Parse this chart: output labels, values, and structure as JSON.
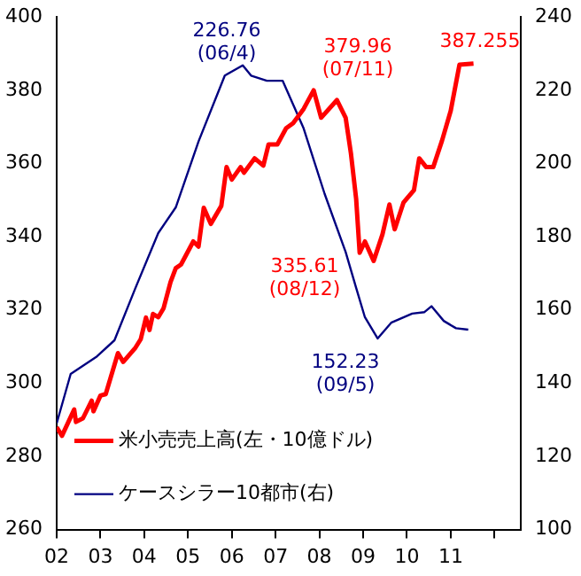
{
  "chart_data": {
    "type": "line",
    "x": [
      2002.0,
      2002.12,
      2002.4,
      2002.44,
      2002.6,
      2002.8,
      2002.84,
      2003.0,
      2003.12,
      2003.4,
      2003.52,
      2003.8,
      2003.92,
      2004.04,
      2004.12,
      2004.2,
      2004.32,
      2004.44,
      2004.6,
      2004.72,
      2004.84,
      2005.12,
      2005.24,
      2005.36,
      2005.52,
      2005.76,
      2005.88,
      2006.0,
      2006.2,
      2006.28,
      2006.52,
      2006.72,
      2006.84,
      2007.04,
      2007.24,
      2007.4,
      2007.64,
      2007.87,
      2008.04,
      2008.4,
      2008.6,
      2008.72,
      2008.84,
      2008.92,
      2009.04,
      2009.24,
      2009.44,
      2009.6,
      2009.72,
      2009.92,
      2010.16,
      2010.28,
      2010.44,
      2010.6,
      2010.8,
      2011.0,
      2011.2,
      2011.52
    ],
    "series": [
      {
        "name": "米小売売上高(左・10億ドル)",
        "color": "#ff0000",
        "values": [
          288,
          285.6,
          292.8,
          289.4,
          290.4,
          295.2,
          292.3,
          296.6,
          297,
          308.2,
          305.8,
          309.7,
          312,
          317.9,
          314.5,
          318.9,
          318,
          320.4,
          327.6,
          331.4,
          332.4,
          338.7,
          337.3,
          347.9,
          343.5,
          348.4,
          359,
          355.6,
          359,
          357.5,
          361.4,
          359.4,
          365.2,
          365.2,
          369.6,
          371,
          374.9,
          380,
          372.5,
          377.3,
          372.5,
          362.8,
          350.3,
          335.6,
          338.7,
          333.4,
          340.6,
          348.8,
          342,
          349.3,
          352.7,
          361.4,
          359,
          359,
          366.2,
          374.4,
          387,
          387.3
        ]
      },
      {
        "name": "ケースシラー10都市(右)",
        "color": "#000080",
        "axis": "y2",
        "x": [
          2002.0,
          2002.32,
          2002.92,
          2003.32,
          2003.8,
          2004.32,
          2004.72,
          2005.24,
          2005.84,
          2006.25,
          2006.44,
          2006.8,
          2007.16,
          2007.64,
          2008.12,
          2008.6,
          2008.84,
          2009.04,
          2009.33,
          2009.64,
          2010.12,
          2010.4,
          2010.56,
          2010.84,
          2011.12,
          2011.4
        ],
        "values": [
          129,
          142.5,
          147.3,
          151.7,
          166,
          181,
          188,
          206,
          224,
          226.8,
          224,
          222.6,
          222.6,
          209.6,
          191.7,
          175.8,
          166,
          158,
          152.2,
          156.5,
          159,
          159.4,
          161,
          157,
          155,
          154.6
        ]
      }
    ],
    "xlim": [
      2002,
      2012.6
    ],
    "xticks": [
      {
        "value": 2002,
        "label": "02"
      },
      {
        "value": 2003,
        "label": "03"
      },
      {
        "value": 2004,
        "label": "04"
      },
      {
        "value": 2005,
        "label": "05"
      },
      {
        "value": 2006,
        "label": "06"
      },
      {
        "value": 2007,
        "label": "07"
      },
      {
        "value": 2008,
        "label": "08"
      },
      {
        "value": 2009,
        "label": "09"
      },
      {
        "value": 2010,
        "label": "10"
      },
      {
        "value": 2011,
        "label": "11"
      },
      {
        "value": 2012,
        "label": null
      }
    ],
    "ylim": [
      260,
      400
    ],
    "yticks": [
      260,
      280,
      300,
      320,
      340,
      360,
      380,
      400
    ],
    "y2lim": [
      100,
      240
    ],
    "y2ticks": [
      100,
      120,
      140,
      160,
      180,
      200,
      220,
      240
    ],
    "annotations": [
      "226.76\n(06/4)",
      "379.96\n(07/11)",
      "387.255",
      "335.61\n(08/12)",
      "152.23\n(09/5)"
    ],
    "grid": false,
    "legend": "bottom left",
    "marker": "none",
    "line_style": "solid"
  }
}
